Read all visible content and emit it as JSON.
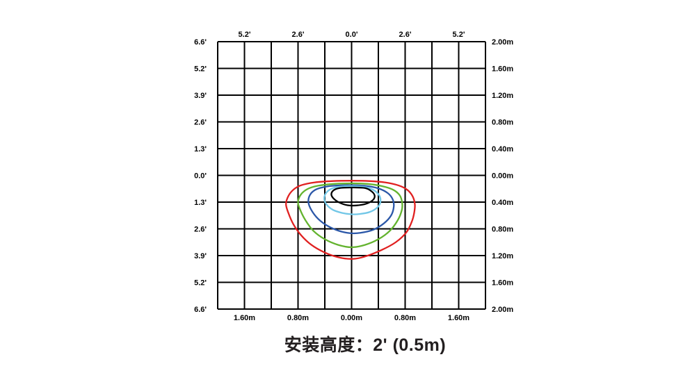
{
  "title": {
    "text": "安装高度：2' (0.5m)"
  },
  "chart_data": {
    "type": "line",
    "subtype": "isolux-contour-diagram",
    "title": "安装高度：2' (0.5m)",
    "x_range_m": [
      -2,
      2
    ],
    "y_range_m": [
      -2,
      2
    ],
    "grid": {
      "cols": 10,
      "rows": 10,
      "line_color": "#000000",
      "show": true
    },
    "legend": {
      "show": false
    },
    "axes": {
      "top": {
        "unit": "feet",
        "ticks": [
          {
            "x": -1.6,
            "label": "5.2'"
          },
          {
            "x": -0.8,
            "label": "2.6'"
          },
          {
            "x": 0.0,
            "label": "0.0'"
          },
          {
            "x": 0.8,
            "label": "2.6'"
          },
          {
            "x": 1.6,
            "label": "5.2'"
          }
        ]
      },
      "bottom": {
        "unit": "meters",
        "ticks": [
          {
            "x": -1.6,
            "label": "1.60m"
          },
          {
            "x": -0.8,
            "label": "0.80m"
          },
          {
            "x": 0.0,
            "label": "0.00m"
          },
          {
            "x": 0.8,
            "label": "0.80m"
          },
          {
            "x": 1.6,
            "label": "1.60m"
          }
        ]
      },
      "left": {
        "unit": "feet",
        "ticks": [
          {
            "y": 2.0,
            "label": "6.6'"
          },
          {
            "y": 1.6,
            "label": "5.2'"
          },
          {
            "y": 1.2,
            "label": "3.9'"
          },
          {
            "y": 0.8,
            "label": "2.6'"
          },
          {
            "y": 0.4,
            "label": "1.3'"
          },
          {
            "y": 0.0,
            "label": "0.0'"
          },
          {
            "y": -0.4,
            "label": "1.3'"
          },
          {
            "y": -0.8,
            "label": "2.6'"
          },
          {
            "y": -1.2,
            "label": "3.9'"
          },
          {
            "y": -1.6,
            "label": "5.2'"
          },
          {
            "y": -2.0,
            "label": "6.6'"
          }
        ]
      },
      "right": {
        "unit": "meters",
        "ticks": [
          {
            "y": 2.0,
            "label": "2.00m"
          },
          {
            "y": 1.6,
            "label": "1.60m"
          },
          {
            "y": 1.2,
            "label": "1.20m"
          },
          {
            "y": 0.8,
            "label": "0.80m"
          },
          {
            "y": 0.4,
            "label": "0.40m"
          },
          {
            "y": 0.0,
            "label": "0.00m"
          },
          {
            "y": -0.4,
            "label": "0.40m"
          },
          {
            "y": -0.8,
            "label": "0.80m"
          },
          {
            "y": -1.2,
            "label": "1.20m"
          },
          {
            "y": -1.6,
            "label": "1.60m"
          },
          {
            "y": -2.0,
            "label": "2.00m"
          }
        ]
      }
    },
    "series": [
      {
        "name": "contour-ring-outer",
        "color": "#e02020",
        "points": [
          [
            0.0,
            -0.08
          ],
          [
            0.26,
            -0.085
          ],
          [
            0.5,
            -0.105
          ],
          [
            0.7,
            -0.15
          ],
          [
            0.83,
            -0.215
          ],
          [
            0.91,
            -0.31
          ],
          [
            0.945,
            -0.43
          ],
          [
            0.935,
            -0.56
          ],
          [
            0.9,
            -0.69
          ],
          [
            0.82,
            -0.85
          ],
          [
            0.66,
            -1.0
          ],
          [
            0.44,
            -1.12
          ],
          [
            0.18,
            -1.22
          ],
          [
            0.0,
            -1.25
          ],
          [
            -0.2,
            -1.225
          ],
          [
            -0.41,
            -1.15
          ],
          [
            -0.6,
            -1.04
          ],
          [
            -0.75,
            -0.9
          ],
          [
            -0.87,
            -0.73
          ],
          [
            -0.945,
            -0.56
          ],
          [
            -0.98,
            -0.43
          ],
          [
            -0.945,
            -0.31
          ],
          [
            -0.87,
            -0.215
          ],
          [
            -0.76,
            -0.15
          ],
          [
            -0.55,
            -0.105
          ],
          [
            -0.28,
            -0.085
          ]
        ]
      },
      {
        "name": "contour-ring-2",
        "color": "#63b32e",
        "points": [
          [
            0.0,
            -0.12
          ],
          [
            0.24,
            -0.128
          ],
          [
            0.45,
            -0.16
          ],
          [
            0.62,
            -0.215
          ],
          [
            0.72,
            -0.3
          ],
          [
            0.755,
            -0.41
          ],
          [
            0.75,
            -0.52
          ],
          [
            0.69,
            -0.67
          ],
          [
            0.57,
            -0.83
          ],
          [
            0.4,
            -0.955
          ],
          [
            0.2,
            -1.04
          ],
          [
            0.0,
            -1.075
          ],
          [
            -0.2,
            -1.04
          ],
          [
            -0.4,
            -0.955
          ],
          [
            -0.57,
            -0.83
          ],
          [
            -0.69,
            -0.67
          ],
          [
            -0.77,
            -0.51
          ],
          [
            -0.8,
            -0.4
          ],
          [
            -0.76,
            -0.29
          ],
          [
            -0.66,
            -0.205
          ],
          [
            -0.5,
            -0.155
          ],
          [
            -0.26,
            -0.128
          ]
        ]
      },
      {
        "name": "contour-ring-3",
        "color": "#2b57a8",
        "points": [
          [
            0.0,
            -0.148
          ],
          [
            0.22,
            -0.158
          ],
          [
            0.4,
            -0.195
          ],
          [
            0.54,
            -0.265
          ],
          [
            0.615,
            -0.36
          ],
          [
            0.63,
            -0.47
          ],
          [
            0.59,
            -0.6
          ],
          [
            0.48,
            -0.72
          ],
          [
            0.32,
            -0.815
          ],
          [
            0.13,
            -0.86
          ],
          [
            -0.02,
            -0.865
          ],
          [
            -0.19,
            -0.83
          ],
          [
            -0.36,
            -0.755
          ],
          [
            -0.5,
            -0.65
          ],
          [
            -0.6,
            -0.52
          ],
          [
            -0.645,
            -0.4
          ],
          [
            -0.62,
            -0.29
          ],
          [
            -0.53,
            -0.21
          ],
          [
            -0.36,
            -0.165
          ],
          [
            -0.17,
            -0.15
          ]
        ]
      },
      {
        "name": "contour-ring-4",
        "color": "#72c7e7",
        "points": [
          [
            0.0,
            -0.162
          ],
          [
            0.18,
            -0.172
          ],
          [
            0.32,
            -0.215
          ],
          [
            0.41,
            -0.295
          ],
          [
            0.432,
            -0.39
          ],
          [
            0.385,
            -0.48
          ],
          [
            0.27,
            -0.548
          ],
          [
            0.12,
            -0.578
          ],
          [
            0.0,
            -0.582
          ],
          [
            -0.14,
            -0.562
          ],
          [
            -0.28,
            -0.515
          ],
          [
            -0.375,
            -0.435
          ],
          [
            -0.408,
            -0.345
          ],
          [
            -0.375,
            -0.255
          ],
          [
            -0.29,
            -0.195
          ],
          [
            -0.16,
            -0.168
          ]
        ]
      },
      {
        "name": "contour-ring-inner",
        "color": "#000000",
        "points": [
          [
            0.0,
            -0.182
          ],
          [
            0.2,
            -0.19
          ],
          [
            0.3,
            -0.24
          ],
          [
            0.345,
            -0.305
          ],
          [
            0.315,
            -0.372
          ],
          [
            0.215,
            -0.425
          ],
          [
            0.07,
            -0.45
          ],
          [
            -0.06,
            -0.447
          ],
          [
            -0.18,
            -0.408
          ],
          [
            -0.265,
            -0.35
          ],
          [
            -0.302,
            -0.288
          ],
          [
            -0.275,
            -0.228
          ],
          [
            -0.19,
            -0.192
          ]
        ]
      }
    ]
  }
}
